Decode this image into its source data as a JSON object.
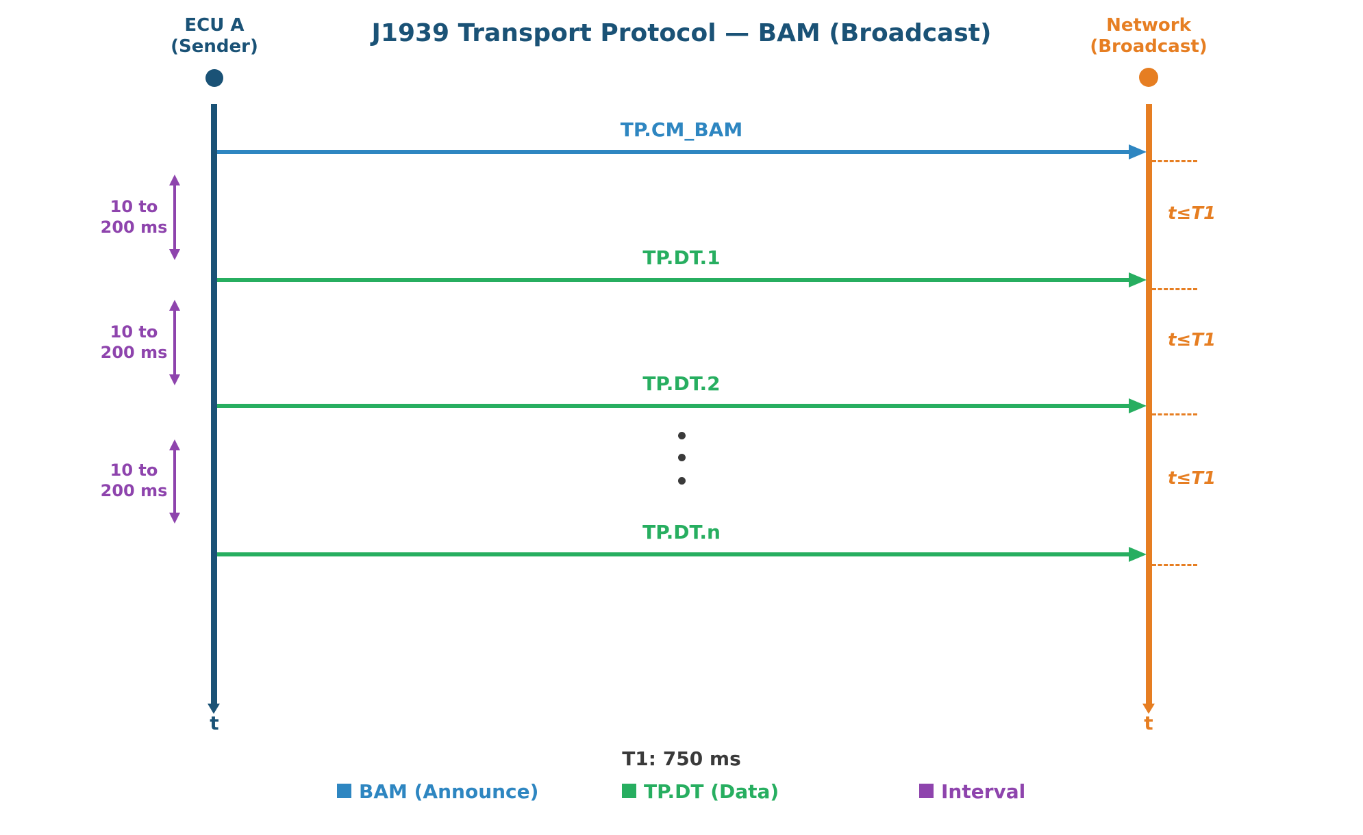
{
  "title": "J1939 Transport Protocol — BAM (Broadcast)",
  "colors": {
    "sender_accent": "#1a5276",
    "network_accent": "#e67e22",
    "bam_accent": "#2e86c1",
    "data_accent": "#27ae60",
    "interval_accent": "#8e44ad",
    "neutral_text": "#3a3a3a"
  },
  "lifelines": {
    "sender": {
      "name_line1": "ECU A",
      "name_line2": "(Sender)",
      "axis_label": "t"
    },
    "network": {
      "name_line1": "Network",
      "name_line2": "(Broadcast)",
      "axis_label": "t"
    }
  },
  "messages": [
    {
      "label": "TP.CM_BAM",
      "kind": "announce"
    },
    {
      "label": "TP.DT.1",
      "kind": "data"
    },
    {
      "label": "TP.DT.2",
      "kind": "data"
    },
    {
      "label": "TP.DT.n",
      "kind": "data"
    }
  ],
  "intervals": [
    {
      "line1": "10 to",
      "line2": "200 ms"
    },
    {
      "line1": "10 to",
      "line2": "200 ms"
    },
    {
      "line1": "10 to",
      "line2": "200 ms"
    }
  ],
  "timing_constraints": [
    {
      "label": "t≤T1"
    },
    {
      "label": "t≤T1"
    },
    {
      "label": "t≤T1"
    }
  ],
  "footnote": "T1: 750 ms",
  "legend": [
    {
      "label": "BAM (Announce)"
    },
    {
      "label": "TP.DT (Data)"
    },
    {
      "label": "Interval"
    }
  ]
}
